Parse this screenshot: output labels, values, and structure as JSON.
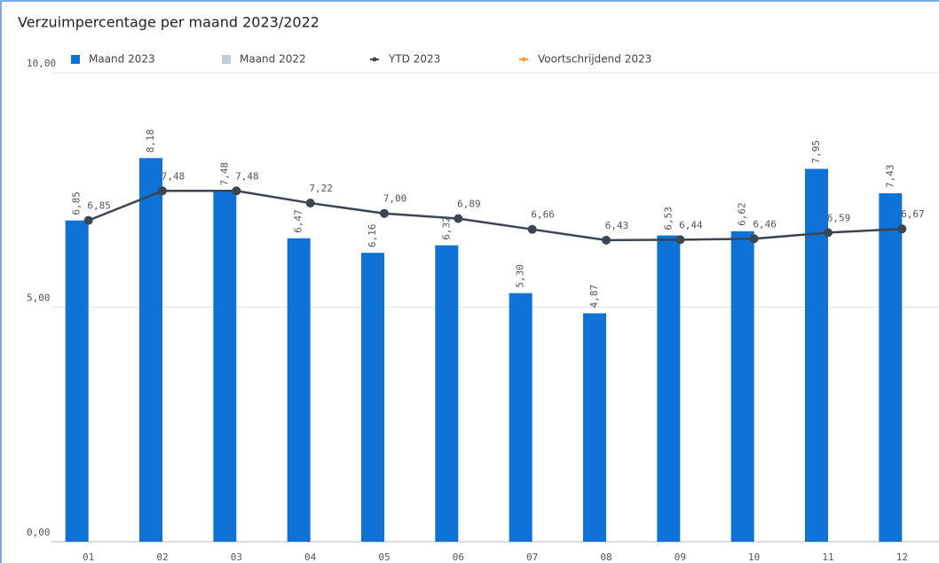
{
  "chart_data": {
    "type": "bar-line",
    "title": "Verzuimpercentage per maand 2023/2022",
    "categories": [
      "01",
      "02",
      "03",
      "04",
      "05",
      "06",
      "07",
      "08",
      "09",
      "10",
      "11",
      "12"
    ],
    "series": [
      {
        "name": "Maand 2023",
        "type": "bar",
        "color": "#0f72d6",
        "values": [
          6.85,
          8.18,
          7.48,
          6.47,
          6.16,
          6.32,
          5.3,
          4.87,
          6.53,
          6.62,
          7.95,
          7.43
        ],
        "value_labels": [
          "6,85",
          "8,18",
          "7,48",
          "6,47",
          "6,16",
          "6,32",
          "5,30",
          "4,87",
          "6,53",
          "6,62",
          "7,95",
          "7,43"
        ]
      },
      {
        "name": "Maand 2022",
        "type": "bar",
        "color": "#c3cad2",
        "values": [
          null,
          null,
          null,
          null,
          null,
          null,
          null,
          null,
          null,
          null,
          null,
          null
        ]
      },
      {
        "name": "YTD 2023",
        "type": "line",
        "color": "#3d4452",
        "values": [
          6.85,
          7.48,
          7.48,
          7.22,
          7.0,
          6.89,
          6.66,
          6.43,
          6.44,
          6.46,
          6.59,
          6.67
        ],
        "value_labels": [
          "6,85",
          "7,48",
          "7,48",
          "7,22",
          "7,00",
          "6,89",
          "6,66",
          "6,43",
          "6,44",
          "6,46",
          "6,59",
          "6,67"
        ]
      },
      {
        "name": "Voortschrijdend 2023",
        "type": "line",
        "color": "#f5a33a",
        "values": [
          null,
          null,
          null,
          null,
          null,
          null,
          null,
          null,
          null,
          null,
          null,
          null
        ]
      }
    ],
    "ylim": [
      0,
      10
    ],
    "yticks": [
      {
        "value": 0,
        "label": "0,00"
      },
      {
        "value": 5,
        "label": "5,00"
      },
      {
        "value": 10,
        "label": "10,00"
      }
    ],
    "grid": true,
    "legend": "top"
  }
}
